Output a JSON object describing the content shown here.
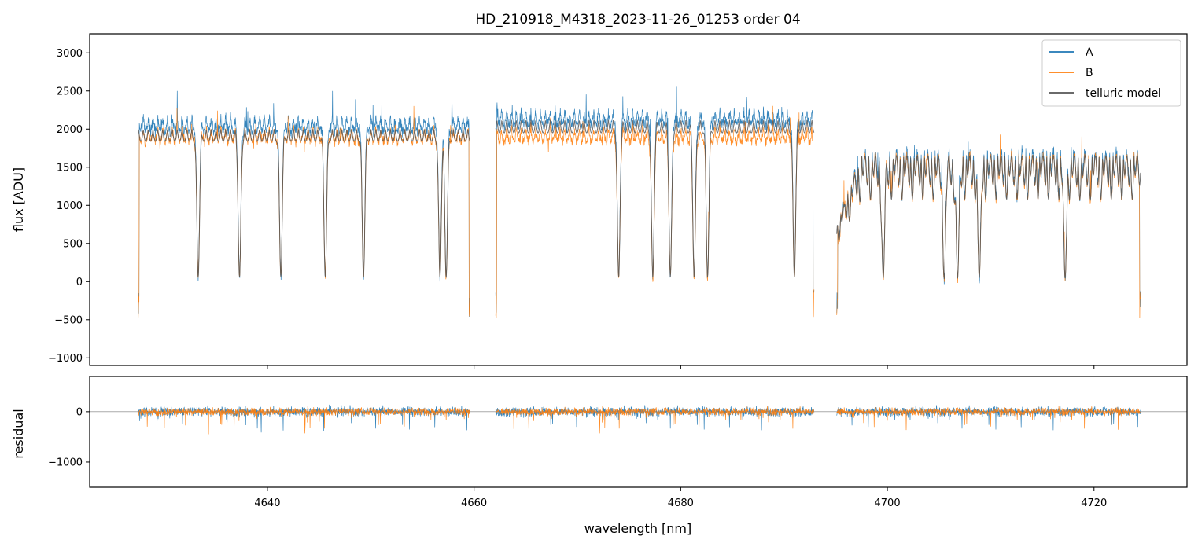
{
  "chart_data": [
    {
      "type": "line",
      "title": "HD_210918_M4318_2023-11-26_01253  order 04",
      "xlabel": "",
      "ylabel": "flux [ADU]",
      "xlim": [
        4622.8,
        4729.0
      ],
      "ylim": [
        -1100,
        3250
      ],
      "yticks": [
        -1000,
        -500,
        0,
        500,
        1000,
        1500,
        2000,
        2500,
        3000
      ],
      "ytick_labels": [
        "−1000",
        "−500",
        "0",
        "500",
        "1000",
        "1500",
        "2000",
        "2500",
        "3000"
      ],
      "xticks": [
        4640,
        4660,
        4680,
        4700,
        4720
      ],
      "legend_location": "top-right",
      "grid": false,
      "segments": [
        {
          "x_start": 4627.5,
          "x_end": 4659.6
        },
        {
          "x_start": 4662.1,
          "x_end": 4692.9
        },
        {
          "x_start": 4695.1,
          "x_end": 4724.5
        }
      ],
      "series": [
        {
          "name": "A",
          "color": "#1f77b4",
          "continuum_by_segment": [
            2150,
            2240,
            1700
          ],
          "noise": 130
        },
        {
          "name": "B",
          "color": "#ff7f0e",
          "continuum_by_segment": [
            2000,
            2000,
            1650
          ],
          "noise": 110
        },
        {
          "name": "telluric model",
          "color": "#555555",
          "continuum_by_segment": [
            2000,
            2120,
            1650
          ],
          "noise": 0
        }
      ],
      "absorption_lines_x": [
        4633.3,
        4637.3,
        4641.3,
        4645.6,
        4649.3,
        4656.7,
        4657.3,
        4674.0,
        4677.3,
        4679.0,
        4681.3,
        4682.6,
        4691.0,
        4699.6,
        4705.5,
        4706.8,
        4708.9,
        4717.2
      ]
    },
    {
      "type": "line",
      "title": "",
      "xlabel": "wavelength [nm]",
      "ylabel": "residual",
      "xlim": [
        4622.8,
        4729.0
      ],
      "ylim": [
        -1500,
        700
      ],
      "yticks": [
        -1000,
        0
      ],
      "ytick_labels": [
        "−1000",
        "0"
      ],
      "xticks": [
        4640,
        4660,
        4680,
        4700,
        4720
      ],
      "xtick_labels": [
        "4640",
        "4660",
        "4680",
        "4700",
        "4720"
      ],
      "reference_line_y": 0,
      "series": [
        {
          "name": "A",
          "color": "#1f77b4",
          "noise": 120
        },
        {
          "name": "B",
          "color": "#ff7f0e",
          "noise": 100
        }
      ]
    }
  ]
}
